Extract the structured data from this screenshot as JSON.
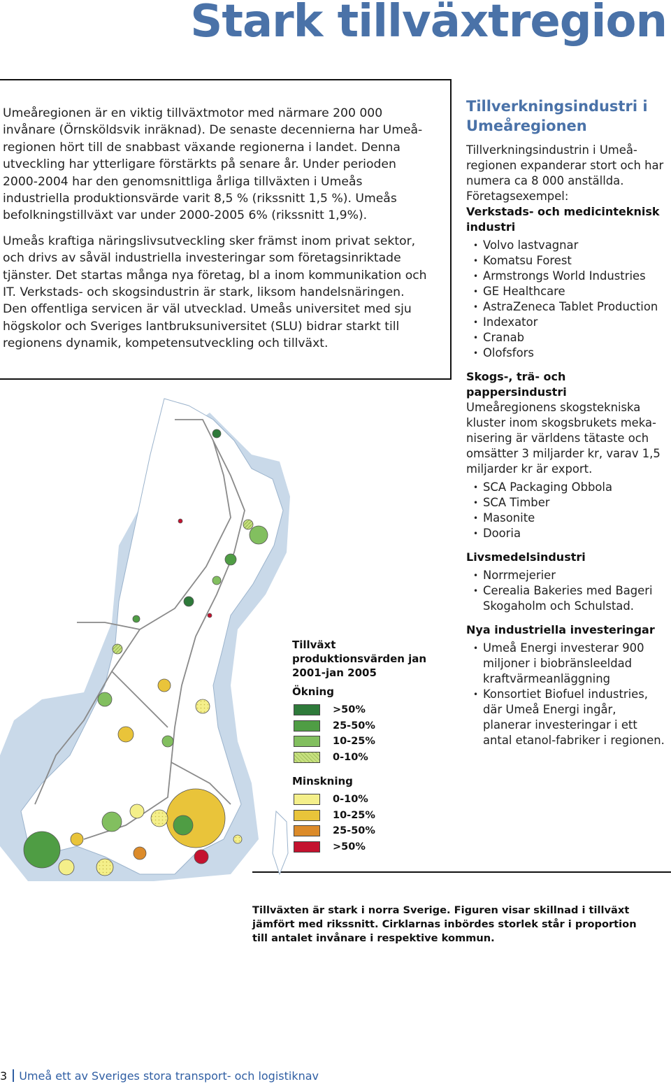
{
  "title": "Stark tillväxtregion",
  "lead": {
    "p1": "Umeåregionen är en viktig tillväxtmotor med närmare 200 000 invånare (Örnsköldsvik inräknad). De senaste decennierna har Umeå-regionen hört till de snabbast växande regionerna i landet. Denna utveckling har ytterligare förstärkts på senare år. Under perioden 2000-2004 har den genomsnittliga årliga tillväxten i Umeås industriella produktionsvärde varit 8,5 % (rikssnitt 1,5 %). Umeås befolkningstillväxt var under 2000-2005 6% (rikssnitt 1,9%).",
    "p2": "Umeås kraftiga näringslivsutveckling sker främst inom privat sektor, och drivs av såväl industriella investeringar som företagsinriktade tjänster. Det startas många nya företag, bl a inom kommunikation och IT. Verkstads- och skogsindustrin är stark, liksom handelsnäringen. Den offentliga servicen är väl utvecklad. Umeås universitet med sju högskolor och Sveriges lantbruksuniversitet (SLU) bidrar starkt till regionens dynamik, kompetensutveckling och tillväxt."
  },
  "side": {
    "heading": "Tillverkningsindustri i Umeåregionen",
    "intro": "Tillverkningsindustrin i Umeå-regionen expanderar stort och har numera ca 8 000 anställda. Företagsexempel:",
    "sections": [
      {
        "title": "Verkstads- och medicinteknisk industri",
        "text": "",
        "items": [
          "Volvo lastvagnar",
          "Komatsu Forest",
          "Armstrongs World Industries",
          "GE Healthcare",
          "AstraZeneca Tablet Production",
          "Indexator",
          "Cranab",
          "Olofsfors"
        ]
      },
      {
        "title": "Skogs-, trä- och pappersindustri",
        "text": "Umeåregionens skogstekniska kluster inom skogsbrukets meka-nisering är världens tätaste och omsätter 3 miljarder kr, varav 1,5 miljarder kr är export.",
        "items": [
          "SCA Packaging Obbola",
          "SCA Timber",
          "Masonite",
          "Dooria"
        ]
      },
      {
        "title": "Livsmedelsindustri",
        "text": "",
        "items": [
          "Norrmejerier",
          "Cerealia Bakeries med Bageri Skogaholm och Schulstad."
        ]
      },
      {
        "title": "Nya industriella investeringar",
        "text": "",
        "items": [
          "Umeå Energi investerar 900 miljoner i biobränsleeldad kraftvärmeanläggning",
          "Konsortiet Biofuel industries, där Umeå Energi ingår, planerar investeringar i ett antal etanol-fabriker i regionen."
        ]
      }
    ]
  },
  "legend": {
    "title": "Tillväxt produktionsvärden jan 2001-jan 2005",
    "increase_label": "Ökning",
    "decrease_label": "Minskning",
    "increase": [
      {
        "label": ">50%",
        "color": "#2e7a3a"
      },
      {
        "label": "25-50%",
        "color": "#4f9d44"
      },
      {
        "label": "10-25%",
        "color": "#82bf5f"
      },
      {
        "label": "0-10%",
        "color": "#c7e07f"
      }
    ],
    "decrease": [
      {
        "label": "0-10%",
        "color": "#f4ef8a"
      },
      {
        "label": "10-25%",
        "color": "#e9c43a"
      },
      {
        "label": "25-50%",
        "color": "#dc8b2a"
      },
      {
        "label": ">50%",
        "color": "#c4122f"
      }
    ]
  },
  "caption": "Tillväxten är stark i norra Sverige. Figuren visar skillnad i tillväxt jämfört med rikssnitt. Cirklarnas inbördes storlek står i proportion till antalet invånare i respektive kommun.",
  "footer": {
    "page": "3",
    "text": "Umeå ett av Sveriges stora transport- och logistiknav"
  },
  "colors": {
    "accent": "#4a72a8",
    "water": "#c9d9e9",
    "land": "#ffffff",
    "road": "#8a8a8a"
  }
}
